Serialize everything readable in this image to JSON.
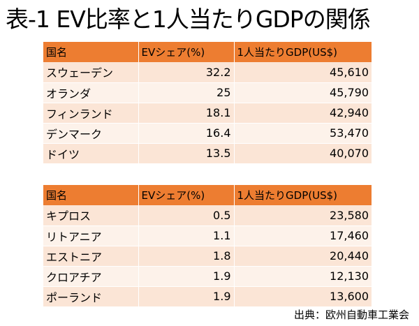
{
  "title": "表-1 EV比率と1人当たりGDPの関係",
  "headers": {
    "country": "国名",
    "ev_share": "EVシェア(%)",
    "gdp": "1人当たりGDP(US$)"
  },
  "table1": [
    {
      "country": "スウェーデン",
      "ev_share": "32.2",
      "gdp": "45,610"
    },
    {
      "country": "オランダ",
      "ev_share": "25",
      "gdp": "45,790"
    },
    {
      "country": "フィンランド",
      "ev_share": "18.1",
      "gdp": "42,940"
    },
    {
      "country": "デンマーク",
      "ev_share": "16.4",
      "gdp": "53,470"
    },
    {
      "country": "ドイツ",
      "ev_share": "13.5",
      "gdp": "40,070"
    }
  ],
  "table2": [
    {
      "country": "キプロス",
      "ev_share": "0.5",
      "gdp": "23,580"
    },
    {
      "country": "リトアニア",
      "ev_share": "1.1",
      "gdp": "17,460"
    },
    {
      "country": "エストニア",
      "ev_share": "1.8",
      "gdp": "20,440"
    },
    {
      "country": "クロアチア",
      "ev_share": "1.9",
      "gdp": "12,130"
    },
    {
      "country": "ポーランド",
      "ev_share": "1.9",
      "gdp": "13,600"
    }
  ],
  "source": "出典：欧州自動車工業会",
  "colors": {
    "header": "#ed7d31",
    "row_odd": "#fbe5d6",
    "row_even": "#fdf2ea"
  }
}
